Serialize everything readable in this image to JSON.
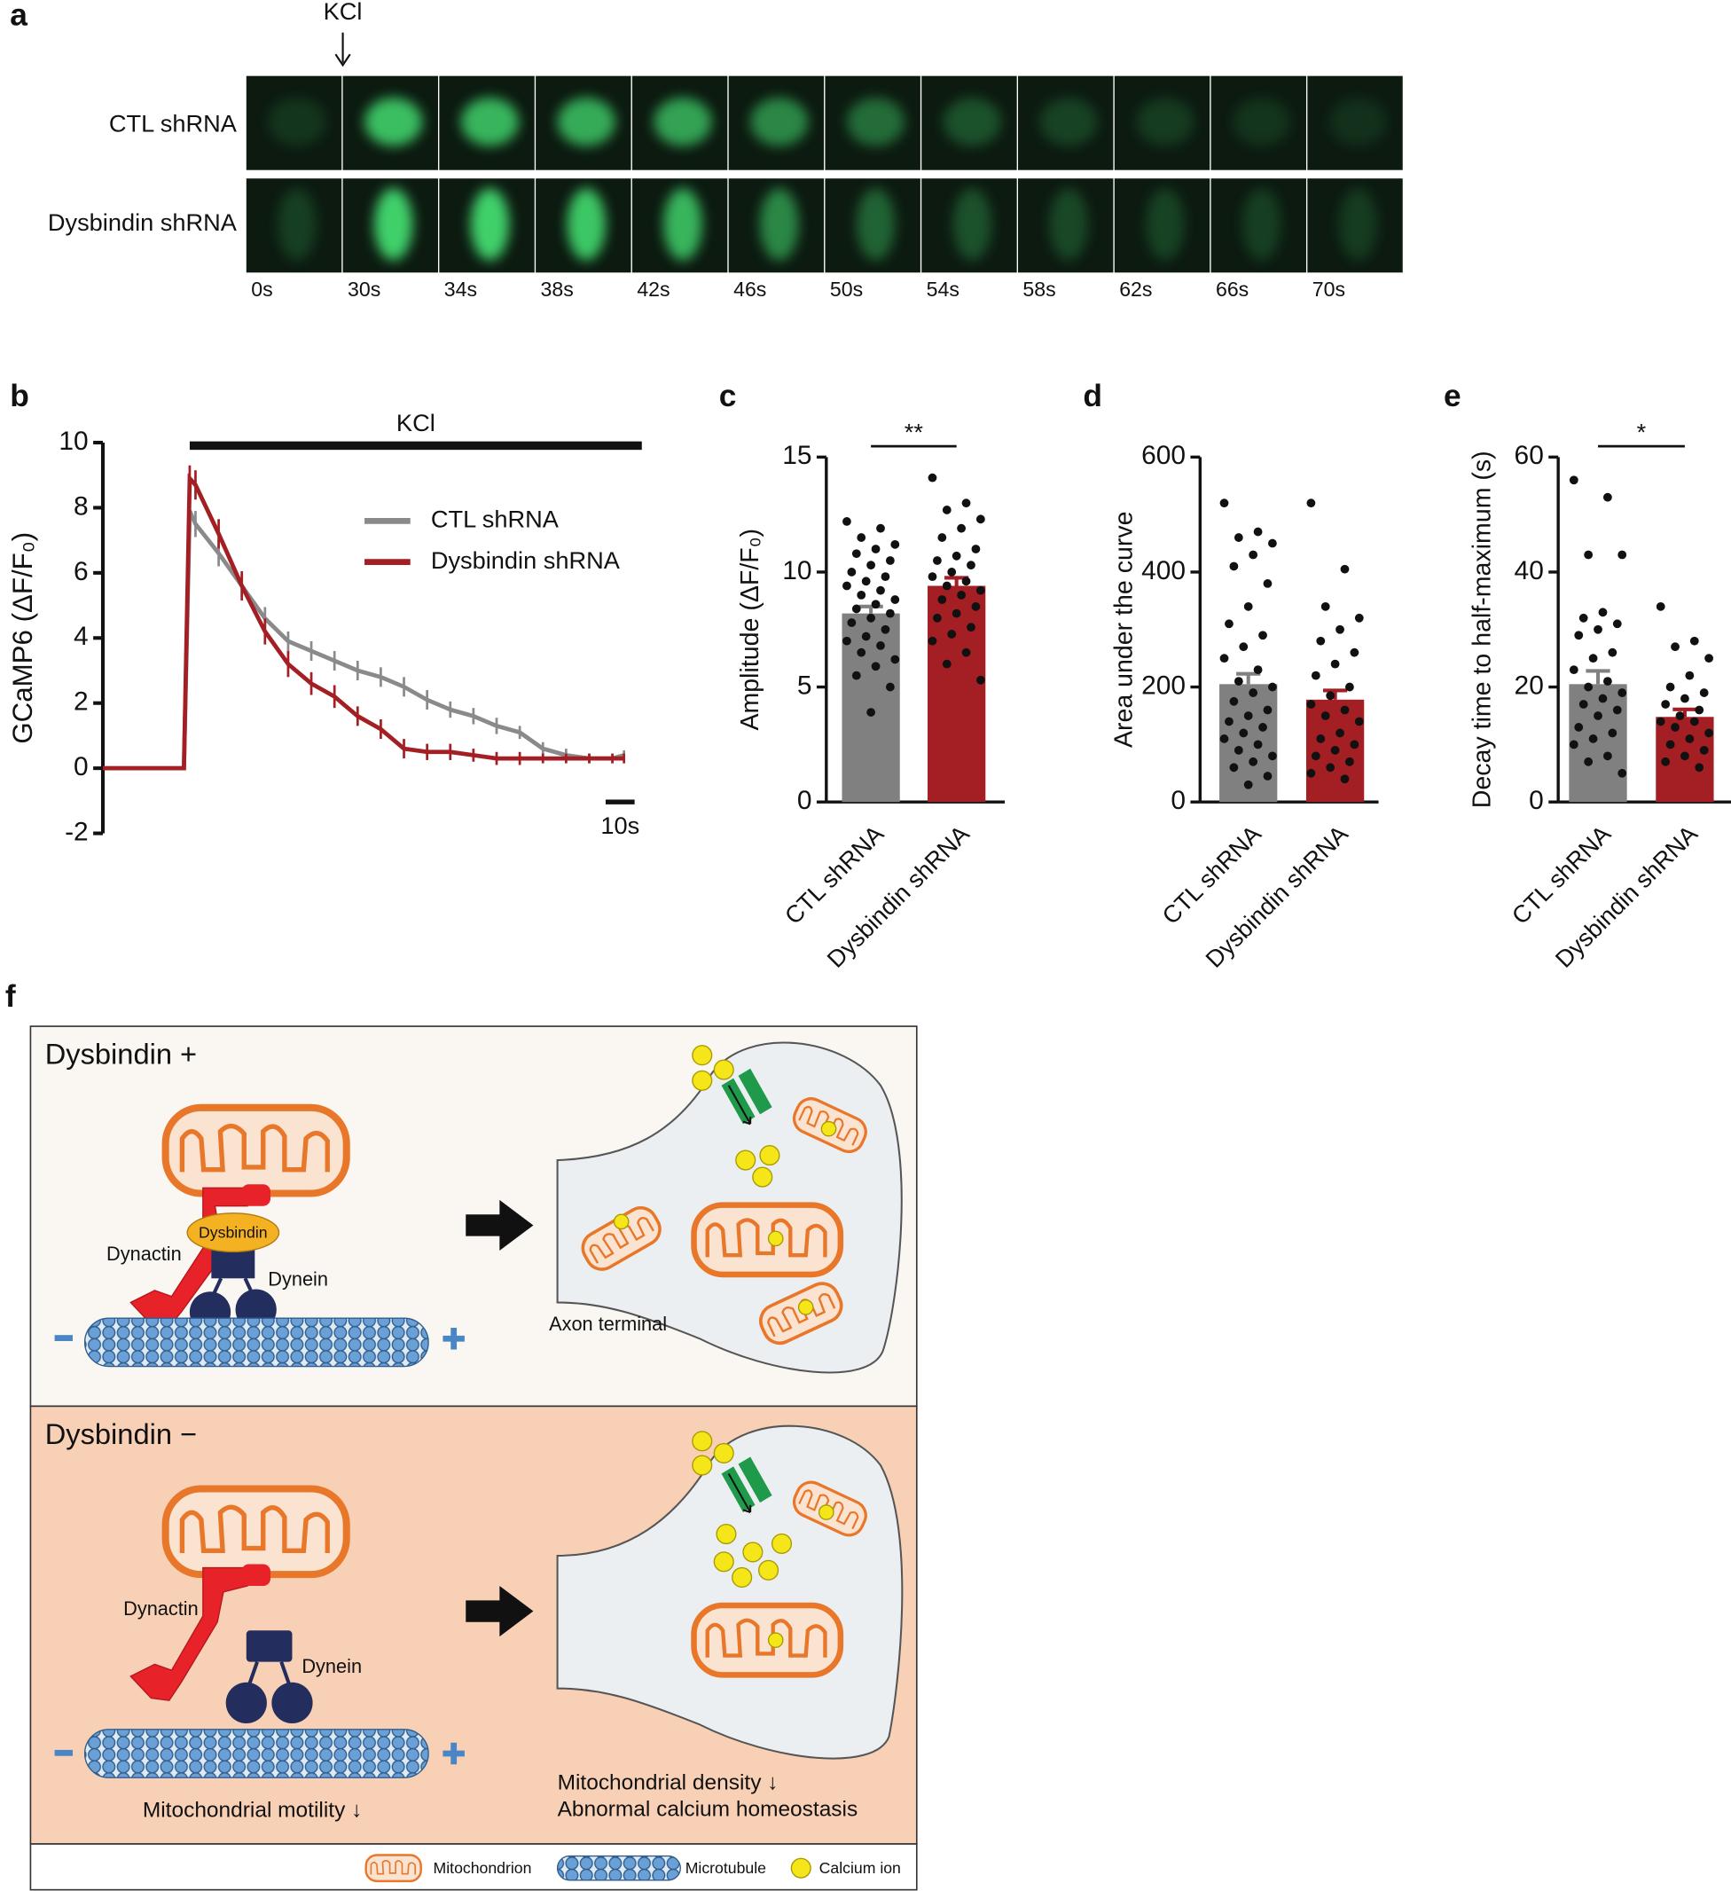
{
  "panel_labels": [
    "a",
    "b",
    "c",
    "d",
    "e",
    "f"
  ],
  "panel_a": {
    "stimulus": "KCl",
    "rows": [
      "CTL shRNA",
      "Dysbindin shRNA"
    ],
    "times": [
      "0s",
      "30s",
      "34s",
      "38s",
      "42s",
      "46s",
      "50s",
      "54s",
      "58s",
      "62s",
      "66s",
      "70s"
    ]
  },
  "chart_data": [
    {
      "type": "line",
      "ylabel": "GCaMP6 (ΔF/F₀)",
      "annotation": "KCl",
      "x": [
        0,
        28,
        30,
        32,
        40,
        48,
        56,
        64,
        72,
        80,
        88,
        96,
        104,
        112,
        120,
        128,
        136,
        144,
        152,
        160,
        168,
        176,
        180
      ],
      "xlim": [
        0,
        182
      ],
      "ylim": [
        -2,
        10
      ],
      "yticks": [
        -2,
        0,
        2,
        4,
        6,
        8,
        10
      ],
      "legend": "upper right",
      "scalebar": {
        "value": 10,
        "label": "10s"
      },
      "series": [
        {
          "name": "CTL shRNA",
          "color": "#8a8a8a",
          "values": [
            0,
            0,
            7.9,
            7.5,
            6.6,
            5.6,
            4.6,
            3.9,
            3.6,
            3.3,
            3.0,
            2.8,
            2.5,
            2.1,
            1.8,
            1.6,
            1.3,
            1.1,
            0.6,
            0.4,
            0.3,
            0.3,
            0.4
          ],
          "errors": [
            0,
            0,
            0.4,
            0.4,
            0.4,
            0.35,
            0.35,
            0.3,
            0.3,
            0.3,
            0.3,
            0.3,
            0.3,
            0.3,
            0.25,
            0.25,
            0.25,
            0.2,
            0.2,
            0.2,
            0.15,
            0.15,
            0.15
          ]
        },
        {
          "name": "Dysbindin shRNA",
          "color": "#a31f24",
          "values": [
            0,
            0,
            8.9,
            8.7,
            7.2,
            5.6,
            4.2,
            3.2,
            2.6,
            2.2,
            1.6,
            1.2,
            0.6,
            0.5,
            0.5,
            0.4,
            0.3,
            0.3,
            0.3,
            0.3,
            0.3,
            0.3,
            0.3
          ],
          "errors": [
            0,
            0,
            0.4,
            0.45,
            0.45,
            0.45,
            0.4,
            0.4,
            0.35,
            0.35,
            0.3,
            0.3,
            0.3,
            0.25,
            0.25,
            0.2,
            0.2,
            0.2,
            0.15,
            0.15,
            0.15,
            0.15,
            0.15
          ]
        }
      ]
    },
    {
      "type": "bar",
      "ylabel": "Amplitude (ΔF/F₀)",
      "annotation": "**",
      "categories": [
        "CTL shRNA",
        "Dysbindin shRNA"
      ],
      "colors": [
        "#808080",
        "#a31f24"
      ],
      "values": [
        8.2,
        9.4
      ],
      "errors": [
        0.3,
        0.35
      ],
      "ylim": [
        0,
        15
      ],
      "yticks": [
        0,
        5,
        10,
        15
      ],
      "points": [
        [
          12.2,
          11.9,
          11.5,
          11.2,
          11.0,
          10.8,
          10.5,
          10.3,
          10.0,
          9.8,
          9.6,
          9.4,
          9.2,
          9.0,
          8.8,
          8.6,
          8.4,
          8.2,
          8.0,
          7.8,
          7.5,
          7.2,
          7.0,
          6.8,
          6.5,
          6.2,
          5.9,
          5.5,
          5.0,
          3.9
        ],
        [
          14.1,
          13.0,
          12.7,
          12.3,
          11.9,
          11.5,
          11.0,
          10.7,
          10.5,
          10.3,
          10.0,
          9.8,
          9.6,
          9.4,
          9.2,
          9.0,
          8.8,
          8.5,
          8.2,
          8.0,
          7.6,
          7.3,
          7.0,
          6.5,
          6.0,
          5.3
        ]
      ]
    },
    {
      "type": "bar",
      "ylabel": "Area under the curve",
      "categories": [
        "CTL shRNA",
        "Dysbindin shRNA"
      ],
      "colors": [
        "#808080",
        "#a31f24"
      ],
      "values": [
        205,
        178
      ],
      "errors": [
        18,
        16
      ],
      "ylim": [
        0,
        600
      ],
      "yticks": [
        0,
        200,
        400,
        600
      ],
      "points": [
        [
          520,
          470,
          460,
          450,
          430,
          410,
          380,
          340,
          310,
          290,
          270,
          250,
          230,
          210,
          200,
          190,
          175,
          160,
          150,
          140,
          130,
          120,
          110,
          100,
          90,
          80,
          70,
          60,
          45,
          30
        ],
        [
          520,
          405,
          340,
          320,
          300,
          280,
          260,
          240,
          220,
          200,
          185,
          170,
          160,
          150,
          140,
          120,
          110,
          100,
          90,
          80,
          70,
          60,
          50,
          40
        ]
      ]
    },
    {
      "type": "bar",
      "ylabel": "Decay time to half-maximum (s)",
      "annotation": "*",
      "categories": [
        "CTL shRNA",
        "Dysbindin shRNA"
      ],
      "colors": [
        "#808080",
        "#a31f24"
      ],
      "values": [
        20.5,
        14.8
      ],
      "errors": [
        2.3,
        1.3
      ],
      "ylim": [
        0,
        60
      ],
      "yticks": [
        0,
        20,
        40,
        60
      ],
      "points": [
        [
          56,
          53,
          43,
          43,
          33,
          32,
          31,
          30,
          29,
          26,
          25,
          23,
          21,
          20,
          19,
          18,
          17,
          16,
          15,
          13,
          12,
          11,
          10,
          8,
          7,
          5
        ],
        [
          34,
          28,
          27,
          25,
          22,
          20,
          19,
          18,
          17,
          16,
          15,
          14,
          14,
          13,
          12,
          11,
          10,
          9,
          8,
          7,
          6
        ]
      ]
    }
  ],
  "panel_f": {
    "top": {
      "title": "Dysbindin +",
      "dysbindin": "Dysbindin",
      "dynactin": "Dynactin",
      "dynein": "Dynein",
      "terminal": "Axon terminal"
    },
    "bottom": {
      "title": "Dysbindin −",
      "dynactin": "Dynactin",
      "dynein": "Dynein",
      "motility": "Mitochondrial motility ↓",
      "density": "Mitochondrial density ↓",
      "calcium": "Abnormal calcium homeostasis"
    },
    "legend": [
      "Mitochondrion",
      "Microtubule",
      "Calcium ion"
    ]
  }
}
